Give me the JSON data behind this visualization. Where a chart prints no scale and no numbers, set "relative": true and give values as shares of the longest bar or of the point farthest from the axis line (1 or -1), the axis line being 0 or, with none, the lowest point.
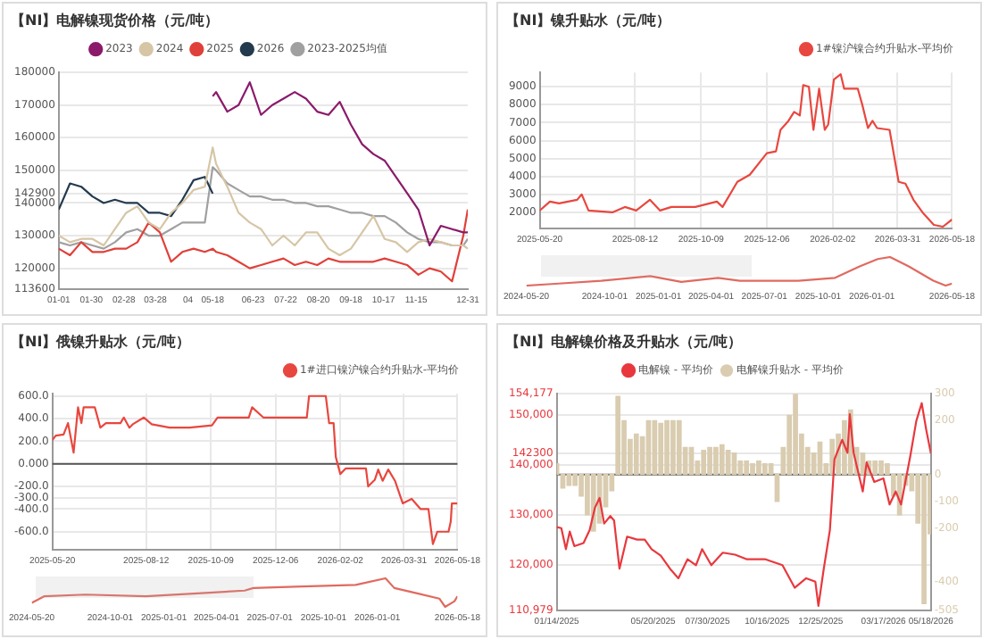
{
  "chart_data": [
    {
      "type": "line",
      "title": "【NI】电解镍现货价格（元/吨）",
      "legend": "top",
      "grid": "y",
      "x": [
        "--01-01",
        "--01-11",
        "--01-21",
        "--01-31",
        "--02-10",
        "--02-20",
        "--03-02",
        "--03-12",
        "--03-22",
        "--04-01",
        "--04-11",
        "--04-21",
        "--05-01",
        "--05-11",
        "--05-18",
        "--05-21",
        "--05-31",
        "--06-10",
        "--06-20",
        "--06-30",
        "--07-10",
        "--07-20",
        "--07-30",
        "--08-09",
        "--08-19",
        "--08-29",
        "--09-08",
        "--09-18",
        "--09-28",
        "--10-08",
        "--10-18",
        "--10-28",
        "--11-07",
        "--11-17",
        "--11-27",
        "--12-07",
        "--12-17",
        "--12-27",
        "--12-31"
      ],
      "series": [
        {
          "name": "2023",
          "color": "#8b1a6b",
          "values": [
            null,
            null,
            null,
            null,
            null,
            null,
            null,
            null,
            null,
            null,
            null,
            null,
            null,
            null,
            172700,
            174000,
            168000,
            170000,
            177000,
            167000,
            170000,
            172000,
            174000,
            172000,
            168000,
            167000,
            171000,
            164000,
            158000,
            155000,
            153000,
            148000,
            143000,
            138000,
            127000,
            133000,
            132000,
            131000,
            131000
          ]
        },
        {
          "name": "2024",
          "color": "#d6c6a6",
          "values": [
            130000,
            128000,
            129000,
            129000,
            127000,
            132000,
            137000,
            139000,
            134000,
            132000,
            137000,
            140000,
            144000,
            145000,
            157000,
            152000,
            145000,
            137000,
            134000,
            132000,
            127000,
            130000,
            127000,
            131000,
            131000,
            126000,
            124000,
            126000,
            131000,
            136000,
            129000,
            128000,
            125000,
            128000,
            129000,
            128000,
            127000,
            127000,
            126000
          ]
        },
        {
          "name": "2025",
          "color": "#e0403a",
          "values": [
            126000,
            124000,
            128000,
            125000,
            125000,
            126000,
            126000,
            128000,
            134000,
            131000,
            122000,
            125000,
            126000,
            125000,
            126000,
            125000,
            124000,
            122000,
            120000,
            121000,
            122000,
            123000,
            121000,
            122000,
            121000,
            123000,
            122000,
            122000,
            122000,
            122000,
            123000,
            122000,
            121000,
            118000,
            120000,
            119000,
            116000,
            130000,
            138000
          ]
        },
        {
          "name": "2026",
          "color": "#233a4f",
          "values": [
            138000,
            146000,
            145000,
            142000,
            140000,
            141000,
            140000,
            140000,
            137000,
            137000,
            136000,
            141000,
            147000,
            148000,
            142900,
            null,
            null,
            null,
            null,
            null,
            null,
            null,
            null,
            null,
            null,
            null,
            null,
            null,
            null,
            null,
            null,
            null,
            null,
            null,
            null,
            null,
            null,
            null,
            null
          ]
        },
        {
          "name": "2023-2025均值",
          "color": "#a0a0a0",
          "values": [
            128000,
            127000,
            128000,
            127000,
            126000,
            128000,
            131000,
            132000,
            130000,
            130000,
            132000,
            134000,
            134000,
            134000,
            151000,
            150000,
            146000,
            144000,
            142000,
            142000,
            141000,
            141000,
            140000,
            140000,
            139000,
            139000,
            138000,
            137000,
            137000,
            136000,
            136000,
            134000,
            131000,
            129000,
            128000,
            128000,
            127000,
            127000,
            129000
          ]
        }
      ],
      "xlim": [
        "--01-01",
        "--12-31"
      ],
      "xticks": [
        {
          "value": "--01-01",
          "label": "01-01"
        },
        {
          "value": "--01-30",
          "label": "01-30"
        },
        {
          "value": "--02-28",
          "label": "02-28"
        },
        {
          "value": "--03-28",
          "label": "03-28"
        },
        {
          "value": "--04-26",
          "label": "04"
        },
        {
          "value": "--05-18",
          "label": "05-18"
        },
        {
          "value": "--06-23",
          "label": "06-23"
        },
        {
          "value": "--07-22",
          "label": "07-22"
        },
        {
          "value": "--08-20",
          "label": "08-20"
        },
        {
          "value": "--09-18",
          "label": "09-18"
        },
        {
          "value": "--10-17",
          "label": "10-17"
        },
        {
          "value": "--11-15",
          "label": "11-15"
        },
        {
          "value": "--12-31",
          "label": "12-31"
        }
      ],
      "ylim": [
        113600,
        180000
      ],
      "yticks": [
        113600,
        120000,
        130000,
        140000,
        142900,
        150000,
        160000,
        170000,
        180000
      ]
    },
    {
      "type": "line",
      "title": "【NI】镍升贴水（元/吨）",
      "legend": "top right",
      "grid": true,
      "x": [
        "2025-05-20",
        "2025-05-29",
        "2025-06-06",
        "2025-06-22",
        "2025-06-26",
        "2025-07-02",
        "2025-07-23",
        "2025-08-03",
        "2025-08-13",
        "2025-08-25",
        "2025-09-03",
        "2025-09-13",
        "2025-10-04",
        "2025-10-23",
        "2025-10-28",
        "2025-11-10",
        "2025-11-21",
        "2025-12-06",
        "2025-12-14",
        "2025-12-18",
        "2025-12-25",
        "2025-12-30",
        "2026-01-04",
        "2026-01-07",
        "2026-01-12",
        "2026-01-16",
        "2026-01-21",
        "2026-01-26",
        "2026-01-29",
        "2026-02-03",
        "2026-02-09",
        "2026-02-12",
        "2026-02-24",
        "2026-02-28",
        "2026-03-05",
        "2026-03-09",
        "2026-03-13",
        "2026-03-24",
        "2026-04-01",
        "2026-04-07",
        "2026-04-14",
        "2026-04-22",
        "2026-05-02",
        "2026-05-10",
        "2026-05-18"
      ],
      "series": [
        {
          "name": "1#镍沪镍合约升贴水-平均价",
          "color": "#e8473f",
          "values": [
            2100,
            2600,
            2500,
            2700,
            3000,
            2100,
            2000,
            2300,
            2100,
            2700,
            2100,
            2300,
            2300,
            2600,
            2300,
            3700,
            4100,
            5300,
            5400,
            6600,
            7100,
            7600,
            7400,
            9100,
            9000,
            6600,
            8900,
            6600,
            6900,
            9400,
            9700,
            8900,
            8900,
            8000,
            6700,
            7100,
            6700,
            6600,
            3700,
            3600,
            2700,
            2000,
            1300,
            1200,
            1600
          ]
        }
      ],
      "xlim": [
        "2025-05-20",
        "2026-05-18"
      ],
      "xticks": [
        {
          "value": "2025-05-20",
          "label": "2025-05-20"
        },
        {
          "value": "2025-08-12",
          "label": "2025-08-12"
        },
        {
          "value": "2025-10-09",
          "label": "2025-10-09"
        },
        {
          "value": "2025-12-06",
          "label": "2025-12-06"
        },
        {
          "value": "2026-02-02",
          "label": "2026-02-02"
        },
        {
          "value": "2026-03-31",
          "label": "2026-03-31"
        },
        {
          "value": "2026-05-18",
          "label": "2026-05-18"
        }
      ],
      "ylim": [
        1100,
        9800
      ],
      "yticks": [
        2000,
        3000,
        4000,
        5000,
        6000,
        7000,
        8000,
        9000
      ]
    },
    {
      "type": "line",
      "relative": true,
      "tick_labels": "x",
      "x": [
        "2024-05-20",
        "2024-07-14",
        "2024-09-25",
        "2024-12-18",
        "2025-02-09",
        "2025-04-13",
        "2025-05-20",
        "2025-06-15",
        "2025-08-28",
        "2025-10-30",
        "2025-12-11",
        "2026-01-11",
        "2026-02-01",
        "2026-03-05",
        "2026-04-16",
        "2026-05-07",
        "2026-05-18"
      ],
      "series": [
        {
          "color": "#e06a60",
          "values": [
            0,
            0.07,
            0.17,
            0.33,
            0.13,
            0.27,
            0.17,
            0.17,
            0.17,
            0.27,
            0.67,
            0.93,
            1,
            0.67,
            0.17,
            0,
            0.07
          ]
        }
      ],
      "xlim": [
        "2024-05-20",
        "2026-05-18"
      ],
      "xticks": [
        {
          "value": "2024-05-20",
          "label": "2024-05-20"
        },
        {
          "value": "2024-10-01",
          "label": "2024-10-01"
        },
        {
          "value": "2025-01-01",
          "label": "2025-01-01"
        },
        {
          "value": "2025-04-01",
          "label": "2025-04-01"
        },
        {
          "value": "2025-07-01",
          "label": "2025-07-01"
        },
        {
          "value": "2025-10-01",
          "label": "2025-10-01"
        },
        {
          "value": "2026-01-01",
          "label": "2026-01-01"
        },
        {
          "value": "2026-05-18",
          "label": "2026-05-18"
        }
      ]
    },
    {
      "type": "line",
      "title": "【NI】俄镍升贴水（元/吨）",
      "legend": "top right",
      "grid": true,
      "x": [
        "2025-05-20",
        "2025-05-23",
        "2025-05-30",
        "2025-06-03",
        "2025-06-08",
        "2025-06-12",
        "2025-06-15",
        "2025-06-17",
        "2025-06-27",
        "2025-07-02",
        "2025-07-07",
        "2025-07-20",
        "2025-07-23",
        "2025-07-28",
        "2025-07-31",
        "2025-08-10",
        "2025-08-17",
        "2025-09-02",
        "2025-09-20",
        "2025-10-10",
        "2025-10-15",
        "2025-11-12",
        "2025-11-15",
        "2025-11-25",
        "2026-01-03",
        "2026-01-05",
        "2026-01-20",
        "2026-01-23",
        "2026-01-27",
        "2026-01-29",
        "2026-02-02",
        "2026-02-07",
        "2026-02-25",
        "2026-02-27",
        "2026-03-05",
        "2026-03-08",
        "2026-03-12",
        "2026-03-17",
        "2026-03-23",
        "2026-03-30",
        "2026-04-07",
        "2026-04-15",
        "2026-04-22",
        "2026-04-26",
        "2026-04-30",
        "2026-05-10",
        "2026-05-12",
        "2026-05-13",
        "2026-05-18"
      ],
      "series": [
        {
          "name": "1#进口镍沪镍合约升贴水-平均价",
          "color": "#e8473f",
          "values": [
            210,
            250,
            260,
            360,
            100,
            500,
            360,
            500,
            500,
            320,
            360,
            360,
            410,
            320,
            350,
            410,
            350,
            320,
            320,
            340,
            410,
            410,
            500,
            410,
            410,
            600,
            600,
            360,
            360,
            60,
            -90,
            -40,
            -40,
            -200,
            -140,
            -50,
            -150,
            -50,
            -150,
            -350,
            -310,
            -400,
            -400,
            -710,
            -600,
            -600,
            -510,
            -350,
            -350
          ]
        }
      ],
      "xlim": [
        "2025-05-20",
        "2026-05-18"
      ],
      "xticks": [
        {
          "value": "2025-05-20",
          "label": "2025-05-20"
        },
        {
          "value": "2025-08-12",
          "label": "2025-08-12"
        },
        {
          "value": "2025-10-09",
          "label": "2025-10-09"
        },
        {
          "value": "2025-12-06",
          "label": "2025-12-06"
        },
        {
          "value": "2026-02-02",
          "label": "2026-02-02"
        },
        {
          "value": "2026-03-31",
          "label": "2026-03-31"
        },
        {
          "value": "2026-05-18",
          "label": "2026-05-18"
        }
      ],
      "ylim": [
        -760,
        620
      ],
      "yticks": [
        {
          "value": -600,
          "label": "-600.0"
        },
        {
          "value": -400,
          "label": "-400.0"
        },
        {
          "value": -300,
          "label": "-300.0"
        },
        {
          "value": -200,
          "label": "-200.0"
        },
        {
          "value": 0,
          "label": "0.000"
        },
        {
          "value": 200,
          "label": "200.0"
        },
        {
          "value": 400,
          "label": "400.0"
        },
        {
          "value": 600,
          "label": "600.0"
        }
      ],
      "ref_lines": [
        {
          "axis": "y",
          "value": 0,
          "color": "#555555"
        }
      ]
    },
    {
      "type": "line",
      "relative": true,
      "tick_labels": "x",
      "x": [
        "2024-05-20",
        "2024-06-10",
        "2024-08-20",
        "2024-12-01",
        "2025-03-13",
        "2025-05-19",
        "2025-06-03",
        "2025-08-14",
        "2025-11-25",
        "2026-01-15",
        "2026-01-30",
        "2026-03-07",
        "2026-04-17",
        "2026-04-27",
        "2026-05-13",
        "2026-05-18"
      ],
      "series": [
        {
          "color": "#e06a60",
          "values": [
            0.14,
            0.37,
            0.43,
            0.37,
            0.49,
            0.57,
            0.66,
            0.71,
            0.77,
            1,
            0.66,
            0.49,
            0.29,
            0,
            0.2,
            0.37
          ]
        }
      ],
      "xlim": [
        "2024-05-20",
        "2026-05-18"
      ],
      "xticks": [
        {
          "value": "2024-05-20",
          "label": "2024-05-20"
        },
        {
          "value": "2024-10-01",
          "label": "2024-10-01"
        },
        {
          "value": "2025-01-01",
          "label": "2025-01-01"
        },
        {
          "value": "2025-04-01",
          "label": "2025-04-01"
        },
        {
          "value": "2025-07-01",
          "label": "2025-07-01"
        },
        {
          "value": "2025-10-01",
          "label": "2025-10-01"
        },
        {
          "value": "2026-01-01",
          "label": "2026-01-01"
        },
        {
          "value": "2026-05-18",
          "label": "2026-05-18"
        }
      ]
    },
    {
      "type": "line",
      "title": "【NI】电解镍价格及升贴水（元/吨）",
      "legend": "top",
      "grid": "y",
      "series": [
        {
          "name": "电解镍 - 平均价",
          "type": "line",
          "color": "#e8383d",
          "x": [
            "2025-01-14",
            "2025-01-20",
            "2025-01-26",
            "2025-01-31",
            "2025-02-06",
            "2025-02-18",
            "2025-02-26",
            "2025-03-05",
            "2025-03-11",
            "2025-03-17",
            "2025-03-25",
            "2025-03-30",
            "2025-04-06",
            "2025-04-16",
            "2025-04-29",
            "2025-05-09",
            "2025-05-18",
            "2025-05-30",
            "2025-06-11",
            "2025-06-22",
            "2025-07-04",
            "2025-07-15",
            "2025-07-23",
            "2025-08-04",
            "2025-08-19",
            "2025-09-04",
            "2025-09-19",
            "2025-10-13",
            "2025-11-05",
            "2025-11-21",
            "2025-12-06",
            "2025-12-18",
            "2025-12-22",
            "2025-12-29",
            "2026-01-06",
            "2026-01-12",
            "2026-01-22",
            "2026-01-29",
            "2026-02-01",
            "2026-02-06",
            "2026-02-18",
            "2026-02-23",
            "2026-03-05",
            "2026-03-17",
            "2026-03-25",
            "2026-04-02",
            "2026-04-09",
            "2026-04-21",
            "2026-04-29",
            "2026-05-06",
            "2026-05-12",
            "2026-05-18"
          ],
          "values": [
            127600,
            127400,
            123200,
            126700,
            123800,
            124400,
            127000,
            131500,
            133400,
            128300,
            129800,
            128900,
            119300,
            125700,
            125100,
            125100,
            123200,
            121900,
            119300,
            117400,
            121200,
            120000,
            123200,
            120000,
            122500,
            122100,
            121200,
            121200,
            120000,
            115500,
            117400,
            116700,
            111900,
            119300,
            127000,
            141100,
            145000,
            142400,
            150100,
            142400,
            134700,
            140500,
            136600,
            137300,
            132100,
            134700,
            132100,
            141700,
            148800,
            152300,
            146900,
            142300
          ]
        },
        {
          "name": "电解镍升贴水 - 平均价",
          "type": "bar",
          "axis": "y2",
          "color": "#d9ccb0",
          "x": [
            "2025-01-14",
            "2025-01-22",
            "2025-01-30",
            "2025-02-07",
            "2025-02-15",
            "2025-02-23",
            "2025-03-03",
            "2025-03-11",
            "2025-03-19",
            "2025-03-27",
            "2025-04-04",
            "2025-04-12",
            "2025-04-20",
            "2025-04-28",
            "2025-05-06",
            "2025-05-14",
            "2025-05-22",
            "2025-05-30",
            "2025-06-07",
            "2025-06-15",
            "2025-06-23",
            "2025-07-01",
            "2025-07-09",
            "2025-07-17",
            "2025-07-25",
            "2025-08-02",
            "2025-08-10",
            "2025-08-18",
            "2025-08-26",
            "2025-09-03",
            "2025-09-11",
            "2025-09-19",
            "2025-09-27",
            "2025-10-05",
            "2025-10-13",
            "2025-10-21",
            "2025-10-29",
            "2025-11-06",
            "2025-11-14",
            "2025-11-22",
            "2025-11-30",
            "2025-12-08",
            "2025-12-16",
            "2025-12-24",
            "2026-01-01",
            "2026-01-09",
            "2026-01-17",
            "2026-01-25",
            "2026-02-02",
            "2026-02-10",
            "2026-02-18",
            "2026-02-26",
            "2026-03-06",
            "2026-03-14",
            "2026-03-22",
            "2026-03-30",
            "2026-04-07",
            "2026-04-15",
            "2026-04-23",
            "2026-05-01",
            "2026-05-09",
            "2026-05-17"
          ],
          "values": [
            40,
            -50,
            -40,
            -40,
            -80,
            -150,
            -210,
            -180,
            -120,
            -60,
            290,
            200,
            130,
            150,
            140,
            200,
            200,
            190,
            200,
            200,
            200,
            100,
            100,
            50,
            90,
            100,
            100,
            110,
            90,
            80,
            50,
            50,
            40,
            50,
            40,
            40,
            -100,
            100,
            220,
            300,
            150,
            100,
            80,
            120,
            40,
            130,
            150,
            200,
            240,
            100,
            80,
            50,
            50,
            50,
            40,
            -80,
            -150,
            -40,
            -60,
            -180,
            -480,
            -220
          ]
        }
      ],
      "xlim": [
        "2025-01-14",
        "2026-05-18"
      ],
      "xticks": [
        {
          "value": "2025-01-14",
          "label": "01/14/2025"
        },
        {
          "value": "2025-05-20",
          "label": "05/20/2025"
        },
        {
          "value": "2025-07-30",
          "label": "07/30/2025"
        },
        {
          "value": "2025-10-16",
          "label": "10/16/2025"
        },
        {
          "value": "2025-12-25",
          "label": "12/25/2025"
        },
        {
          "value": "2026-03-17",
          "label": "03/17/2026"
        },
        {
          "value": "2026-05-18",
          "label": "05/18/2026"
        }
      ],
      "ylim": [
        110979,
        154177
      ],
      "yticks": [
        {
          "value": 110979,
          "label": "110,979"
        },
        {
          "value": 120000,
          "label": "120,000"
        },
        {
          "value": 130000,
          "label": "130,000"
        },
        {
          "value": 140000,
          "label": "140,000"
        },
        {
          "value": 142300,
          "label": "142300"
        },
        {
          "value": 150000,
          "label": "150,000"
        },
        {
          "value": 154177,
          "label": "154,177"
        }
      ],
      "y2lim": [
        -505,
        300
      ],
      "y2ticks": [
        -505,
        -400,
        -200,
        -100,
        0,
        200,
        300
      ],
      "ref_lines": [
        {
          "axis": "y2",
          "value": 0,
          "color": "#555555"
        }
      ]
    }
  ]
}
